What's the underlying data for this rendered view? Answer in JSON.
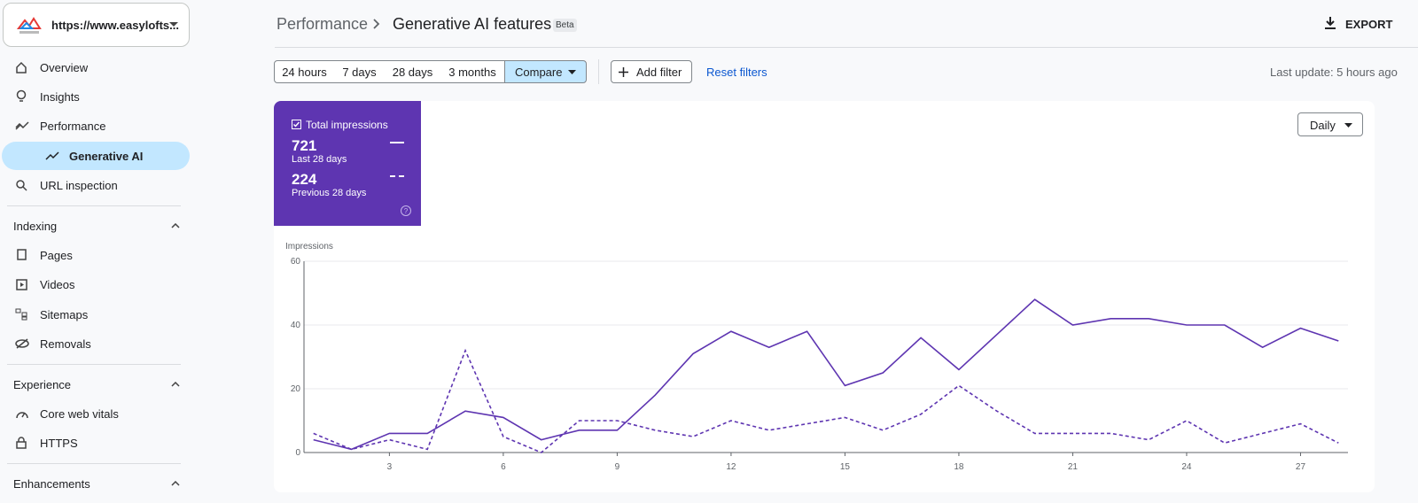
{
  "sidebar": {
    "property": "https://www.easylofts...",
    "items": [
      "Overview",
      "Insights",
      "Performance",
      "Generative AI",
      "URL inspection"
    ],
    "indexing": {
      "title": "Indexing",
      "items": [
        "Pages",
        "Videos",
        "Sitemaps",
        "Removals"
      ]
    },
    "experience": {
      "title": "Experience",
      "items": [
        "Core web vitals",
        "HTTPS"
      ]
    },
    "enhancements": {
      "title": "Enhancements"
    }
  },
  "header": {
    "breadcrumb": "Performance",
    "title": "Generative AI features",
    "badge": "Beta",
    "export": "EXPORT"
  },
  "toolbar": {
    "ranges": [
      "24 hours",
      "7 days",
      "28 days",
      "3 months"
    ],
    "compare": "Compare",
    "add_filter": "Add filter",
    "reset": "Reset filters",
    "last_update": "Last update: 5 hours ago"
  },
  "metric_card": {
    "label": "Total impressions",
    "totals": [
      721,
      224
    ]
  },
  "granularity": "Daily",
  "chart_data": {
    "type": "line",
    "y_label": "Impressions",
    "x": [
      1,
      2,
      3,
      4,
      5,
      6,
      7,
      8,
      9,
      10,
      11,
      12,
      13,
      14,
      15,
      16,
      17,
      18,
      19,
      20,
      21,
      22,
      23,
      24,
      25,
      26,
      27,
      28
    ],
    "series": [
      {
        "name": "Last 28 days",
        "color": "#5e35b1",
        "line_style": "solid",
        "values": [
          4,
          1,
          6,
          6,
          13,
          11,
          4,
          7,
          7,
          18,
          31,
          38,
          33,
          38,
          21,
          25,
          36,
          26,
          37,
          48,
          40,
          42,
          42,
          40,
          40,
          33,
          39,
          35
        ]
      },
      {
        "name": "Previous 28 days",
        "color": "#5e35b1",
        "line_style": "dashed",
        "values": [
          6,
          1,
          4,
          1,
          32,
          5,
          0,
          10,
          10,
          7,
          5,
          10,
          7,
          9,
          11,
          7,
          12,
          21,
          13,
          6,
          6,
          6,
          4,
          10,
          3,
          6,
          9,
          3
        ]
      }
    ],
    "xlim": [
      0.75,
      28.25
    ],
    "xticks": [
      3,
      6,
      9,
      12,
      15,
      18,
      21,
      24,
      27
    ],
    "ylim": [
      0,
      60
    ],
    "yticks": [
      0,
      20,
      40,
      60
    ],
    "grid": true
  }
}
